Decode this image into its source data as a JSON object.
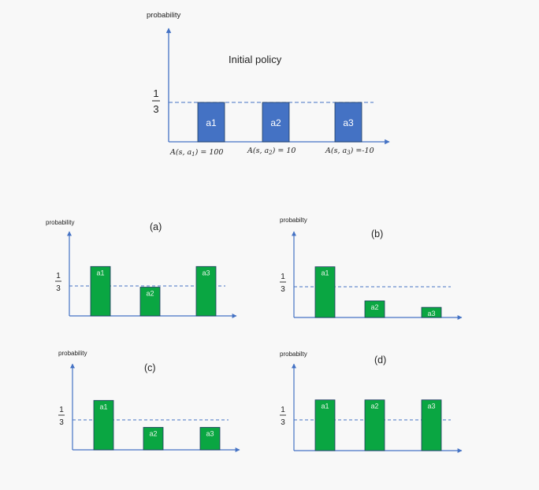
{
  "top": {
    "ylabel": "probability",
    "title": "Initial policy",
    "fraction": {
      "num": "1",
      "den": "3"
    },
    "bar_color": "#4472c4",
    "bars": [
      {
        "label": "a1",
        "value": 0.3333,
        "advantage": {
          "pre": "A(s, a",
          "sub": "1",
          "post": ") = 100"
        }
      },
      {
        "label": "a2",
        "value": 0.3333,
        "advantage": {
          "pre": "A(s, a",
          "sub": "2",
          "post": ") = 10"
        }
      },
      {
        "label": "a3",
        "value": 0.3333,
        "advantage": {
          "pre": "A(s, a",
          "sub": "3",
          "post": ") =-10"
        }
      }
    ]
  },
  "panels": [
    {
      "id": "a",
      "title": "(a)",
      "ylabel": "probability",
      "fraction": {
        "num": "1",
        "den": "3"
      },
      "bars": [
        {
          "label": "a1",
          "value": 0.55
        },
        {
          "label": "a2",
          "value": 0.32
        },
        {
          "label": "a3",
          "value": 0.55
        }
      ]
    },
    {
      "id": "b",
      "title": "(b)",
      "ylabel": "probabilty",
      "fraction": {
        "num": "1",
        "den": "3"
      },
      "bars": [
        {
          "label": "a1",
          "value": 0.55
        },
        {
          "label": "a2",
          "value": 0.18
        },
        {
          "label": "a3",
          "value": 0.11
        }
      ]
    },
    {
      "id": "c",
      "title": "(c)",
      "ylabel": "probability",
      "fraction": {
        "num": "1",
        "den": "3"
      },
      "bars": [
        {
          "label": "a1",
          "value": 0.55
        },
        {
          "label": "a2",
          "value": 0.25
        },
        {
          "label": "a3",
          "value": 0.25
        }
      ]
    },
    {
      "id": "d",
      "title": "(d)",
      "ylabel": "probabilty",
      "fraction": {
        "num": "1",
        "den": "3"
      },
      "bars": [
        {
          "label": "a1",
          "value": 0.55
        },
        {
          "label": "a2",
          "value": 0.55
        },
        {
          "label": "a3",
          "value": 0.55
        }
      ]
    }
  ],
  "colors": {
    "axis": "#4472c4",
    "green": "#0aa642",
    "bar_edge": "#1e3a5f"
  }
}
